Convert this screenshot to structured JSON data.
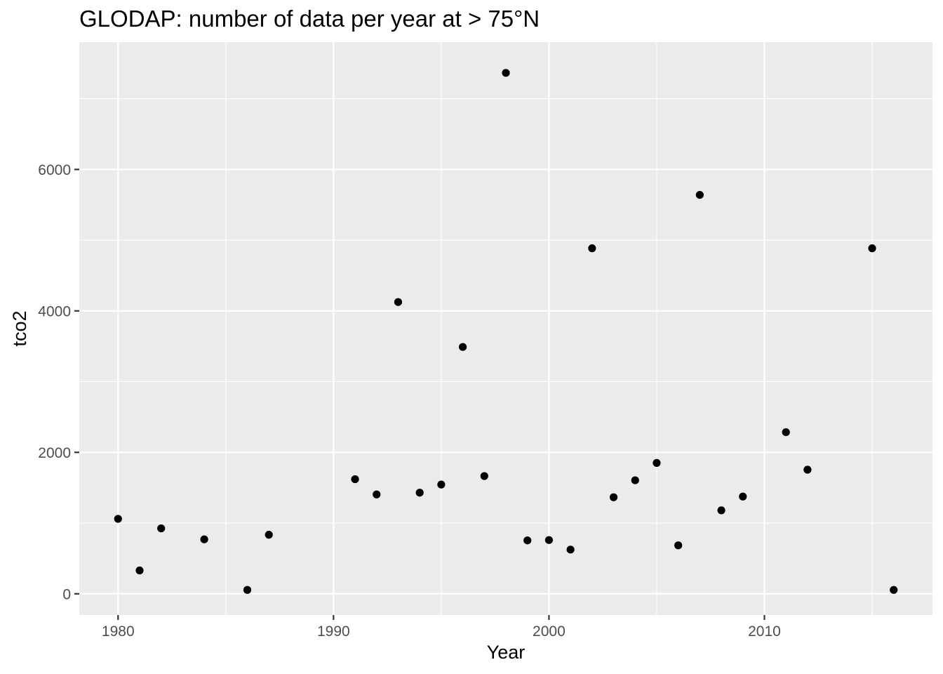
{
  "chart_data": {
    "type": "scatter",
    "title": "GLODAP: number of data per year at > 75°N",
    "xlabel": "Year",
    "ylabel": "tco2",
    "xlim": [
      1978.2,
      2017.8
    ],
    "ylim": [
      -300,
      7800
    ],
    "x_ticks": [
      1980,
      1990,
      2000,
      2010
    ],
    "x_tick_labels": [
      "1980",
      "1990",
      "2000",
      "2010"
    ],
    "x_minor_ticks": [
      1985,
      1995,
      2005,
      2015
    ],
    "y_ticks": [
      0,
      2000,
      4000,
      6000
    ],
    "y_tick_labels": [
      "0",
      "2000",
      "4000",
      "6000"
    ],
    "y_minor_ticks": [
      1000,
      3000,
      5000,
      7000
    ],
    "grid": true,
    "legend": "none",
    "colors": {
      "panel": "#ebebeb",
      "grid": "#ffffff",
      "point": "#000000",
      "tick": "#333333",
      "tick_text": "#4d4d4d"
    },
    "points": [
      {
        "x": 1980,
        "y": 1060
      },
      {
        "x": 1981,
        "y": 330
      },
      {
        "x": 1982,
        "y": 925
      },
      {
        "x": 1984,
        "y": 770
      },
      {
        "x": 1986,
        "y": 55
      },
      {
        "x": 1987,
        "y": 835
      },
      {
        "x": 1991,
        "y": 1620
      },
      {
        "x": 1992,
        "y": 1405
      },
      {
        "x": 1993,
        "y": 4125
      },
      {
        "x": 1994,
        "y": 1430
      },
      {
        "x": 1995,
        "y": 1545
      },
      {
        "x": 1996,
        "y": 3490
      },
      {
        "x": 1997,
        "y": 1665
      },
      {
        "x": 1998,
        "y": 7365
      },
      {
        "x": 1999,
        "y": 755
      },
      {
        "x": 2000,
        "y": 760
      },
      {
        "x": 2001,
        "y": 625
      },
      {
        "x": 2002,
        "y": 4885
      },
      {
        "x": 2003,
        "y": 1365
      },
      {
        "x": 2004,
        "y": 1605
      },
      {
        "x": 2005,
        "y": 1850
      },
      {
        "x": 2006,
        "y": 685
      },
      {
        "x": 2007,
        "y": 5640
      },
      {
        "x": 2008,
        "y": 1180
      },
      {
        "x": 2009,
        "y": 1375
      },
      {
        "x": 2011,
        "y": 2285
      },
      {
        "x": 2012,
        "y": 1755
      },
      {
        "x": 2015,
        "y": 4885
      },
      {
        "x": 2016,
        "y": 55
      }
    ]
  }
}
